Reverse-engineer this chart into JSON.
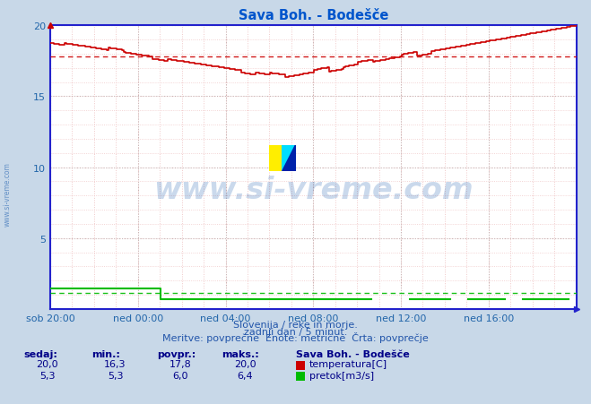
{
  "title": "Sava Boh. - Bodešče",
  "fig_bg_color": "#c8d8e8",
  "plot_bg_color": "#ffffff",
  "grid_color_major": "#c8b8b8",
  "grid_color_minor": "#e8d8d8",
  "grid_color_v_minor": "#f0c8c8",
  "ylim": [
    0,
    20
  ],
  "xtick_labels": [
    "sob 20:00",
    "ned 00:00",
    "ned 04:00",
    "ned 08:00",
    "ned 12:00",
    "ned 16:00"
  ],
  "n_points": 288,
  "temp_color": "#cc0000",
  "flow_color": "#00bb00",
  "avg_temp": 17.8,
  "avg_flow_display": 1.45,
  "min_temp": 16.3,
  "max_temp": 20.0,
  "cur_temp": 20.0,
  "min_flow": 5.3,
  "max_flow": 6.4,
  "cur_flow": 5.3,
  "avg_flow": 6.0,
  "footer_line1": "Slovenija / reke in morje.",
  "footer_line2": "zadnji dan / 5 minut.",
  "footer_line3": "Meritve: povprečne  Enote: metrične  Črta: povprečje",
  "watermark": "www.si-vreme.com",
  "title_color": "#0055cc",
  "axis_color": "#2222cc",
  "tick_color": "#2266aa",
  "watermark_color": "#1155aa",
  "watermark_alpha": 0.22,
  "footer_color": "#2255aa",
  "table_header_color": "#000088",
  "legend_title": "Sava Boh. - Bodešče"
}
